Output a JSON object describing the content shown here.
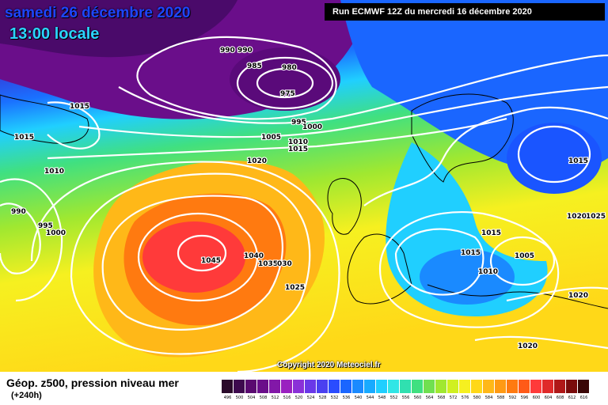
{
  "header": {
    "date": "samedi 26 décembre 2020",
    "local_time": "13:00 locale",
    "run_info": "Run ECMWF 12Z du mercredi 16 décembre 2020",
    "copyright": "Copyright 2020 Meteociel.fr"
  },
  "footer": {
    "title": "Géop. z500, pression niveau mer",
    "lead": "(+240h)"
  },
  "colors": {
    "low_purple": "#5a1090",
    "blue": "#1a55ff",
    "cyan": "#20d8ff",
    "green": "#70e060",
    "yellow": "#f6f020",
    "orange": "#ff8c10",
    "red_high": "#ff3a3a",
    "isobar": "#ffffff",
    "coastline": "#000000"
  },
  "isobar_labels": [
    "990",
    "990",
    "985",
    "980",
    "975",
    "1015",
    "1015",
    "995",
    "1000",
    "1005",
    "1010",
    "1015",
    "1020",
    "1010",
    "990",
    "995",
    "1000",
    "1045",
    "1040",
    "1035",
    "030",
    "1025",
    "1015",
    "1015",
    "1005",
    "1010",
    "1020",
    "1025",
    "1020",
    "1015",
    "1020"
  ],
  "scale": [
    {
      "value": "496",
      "color": "#2a0a2a"
    },
    {
      "value": "500",
      "color": "#3e0a4e"
    },
    {
      "value": "504",
      "color": "#5a0a70"
    },
    {
      "value": "508",
      "color": "#6a0e8a"
    },
    {
      "value": "512",
      "color": "#8218a8"
    },
    {
      "value": "516",
      "color": "#9a20c0"
    },
    {
      "value": "520",
      "color": "#8a30d8"
    },
    {
      "value": "524",
      "color": "#6a38e8"
    },
    {
      "value": "528",
      "color": "#4a40f0"
    },
    {
      "value": "532",
      "color": "#2a4cff"
    },
    {
      "value": "536",
      "color": "#1a66ff"
    },
    {
      "value": "540",
      "color": "#1a8aff"
    },
    {
      "value": "544",
      "color": "#18aaff"
    },
    {
      "value": "548",
      "color": "#20cfff"
    },
    {
      "value": "552",
      "color": "#30e6e6"
    },
    {
      "value": "556",
      "color": "#30e0b0"
    },
    {
      "value": "560",
      "color": "#40e080"
    },
    {
      "value": "564",
      "color": "#70e050"
    },
    {
      "value": "568",
      "color": "#a0e830"
    },
    {
      "value": "572",
      "color": "#d0f020"
    },
    {
      "value": "576",
      "color": "#f6f020"
    },
    {
      "value": "580",
      "color": "#ffd818"
    },
    {
      "value": "584",
      "color": "#ffb818"
    },
    {
      "value": "588",
      "color": "#ff9a14"
    },
    {
      "value": "592",
      "color": "#ff7a10"
    },
    {
      "value": "596",
      "color": "#ff5a18"
    },
    {
      "value": "600",
      "color": "#ff3a3a"
    },
    {
      "value": "604",
      "color": "#e02a2a"
    },
    {
      "value": "608",
      "color": "#b01818"
    },
    {
      "value": "612",
      "color": "#7a0c0c"
    },
    {
      "value": "616",
      "color": "#3a0606"
    }
  ]
}
